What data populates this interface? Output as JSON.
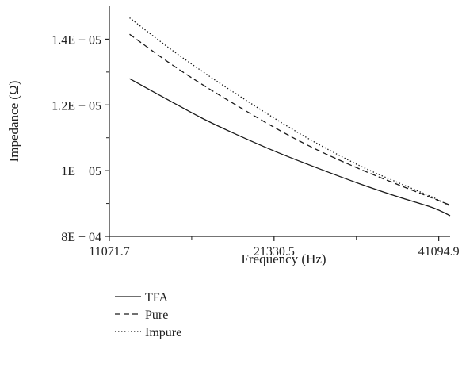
{
  "chart_data": {
    "type": "line",
    "title": "",
    "xlabel": "Frequency (Hz)",
    "ylabel": "Impedance (Ω)",
    "x_scale": "log",
    "xlim": [
      11071.7,
      41094.9
    ],
    "ylim": [
      80000,
      150000
    ],
    "x_ticks": [
      {
        "value": 11071.7,
        "label": "11071.7"
      },
      {
        "value": 21330.5,
        "label": "21330.5"
      },
      {
        "value": 41094.9,
        "label": "41094.9"
      }
    ],
    "x_minor_ticks": [
      15367.4,
      29606.6
    ],
    "y_ticks": [
      {
        "value": 80000,
        "label": "8E + 04"
      },
      {
        "value": 100000,
        "label": "1E + 05"
      },
      {
        "value": 120000,
        "label": "1.2E + 05"
      },
      {
        "value": 140000,
        "label": "1.4E + 05"
      }
    ],
    "x": [
      12000,
      14000,
      16000,
      18000,
      21330.5,
      25000,
      30000,
      35000,
      40000,
      43000
    ],
    "series": [
      {
        "name": "TFA",
        "style": "solid",
        "values": [
          128000,
          121500,
          116000,
          111700,
          106000,
          101200,
          96000,
          92000,
          88800,
          86300
        ]
      },
      {
        "name": "Pure",
        "style": "dashed",
        "values": [
          141500,
          133000,
          126300,
          120800,
          113200,
          106800,
          100500,
          95700,
          91700,
          89500
        ]
      },
      {
        "name": "Impure",
        "style": "dotted",
        "values": [
          146500,
          137500,
          130300,
          124300,
          116000,
          108800,
          101500,
          96300,
          92000,
          89200
        ]
      }
    ],
    "grid": false,
    "legend_position": "bottom-left"
  }
}
